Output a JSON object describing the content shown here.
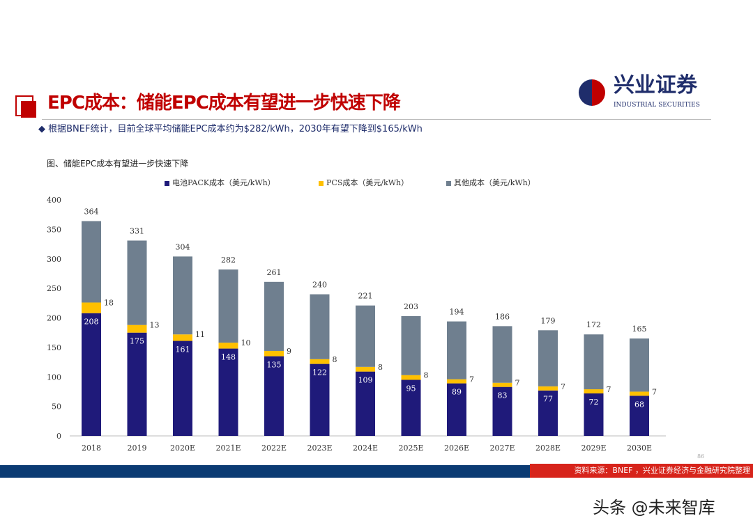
{
  "header": {
    "title": "EPC成本：储能EPC成本有望进一步快速下降",
    "bullet": "根据BNEF统计，目前全球平均储能EPC成本约为$282/kWh，2030年有望下降到$165/kWh",
    "logo_cn": "兴业证券",
    "logo_en": "INDUSTRIAL SECURITIES"
  },
  "footer": {
    "source": "资料来源：BNEF ，兴业证券经济与金融研究院整理",
    "page": "86",
    "watermark": "头条 @未来智库"
  },
  "colors": {
    "pack": "#1f1a7a",
    "pcs": "#ffc000",
    "other": "#6f7f8f",
    "brand_red": "#c00000",
    "footer_blue": "#0b3b73"
  },
  "chart_data": {
    "type": "stacked-bar",
    "title": "图、储能EPC成本有望进一步快速下降",
    "categories": [
      "2018",
      "2019",
      "2020E",
      "2021E",
      "2022E",
      "2023E",
      "2024E",
      "2025E",
      "2026E",
      "2027E",
      "2028E",
      "2029E",
      "2030E"
    ],
    "series": [
      {
        "name": "电池PACK成本（美元/kWh）",
        "values": [
          208,
          175,
          161,
          148,
          135,
          122,
          109,
          95,
          89,
          83,
          77,
          72,
          68
        ]
      },
      {
        "name": "PCS成本（美元/kWh）",
        "values": [
          18,
          13,
          11,
          10,
          9,
          8,
          8,
          8,
          7,
          7,
          7,
          7,
          7
        ]
      },
      {
        "name": "其他成本（美元/kWh）",
        "values": [
          138,
          143,
          132,
          124,
          117,
          110,
          104,
          100,
          98,
          96,
          95,
          93,
          90
        ]
      }
    ],
    "totals": [
      364,
      331,
      304,
      282,
      261,
      240,
      221,
      203,
      194,
      186,
      179,
      172,
      165
    ],
    "ylim": [
      0,
      400
    ],
    "yticks": [
      0,
      50,
      100,
      150,
      200,
      250,
      300,
      350,
      400
    ],
    "grid": false,
    "legend": "top"
  }
}
